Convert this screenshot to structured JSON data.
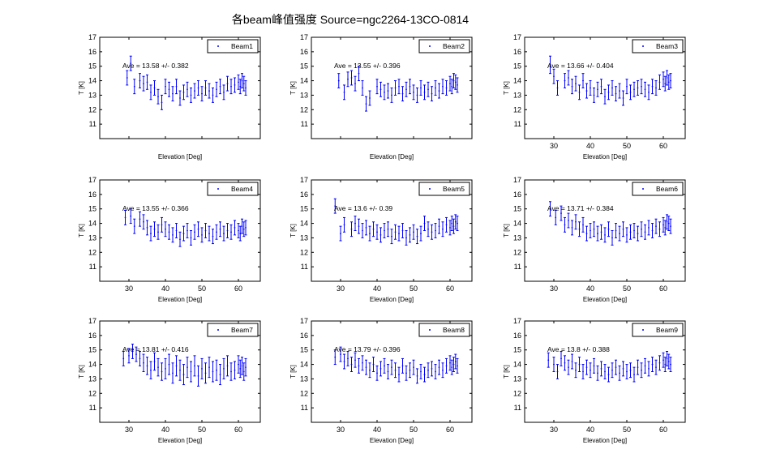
{
  "figure": {
    "title": "各beam峰值强度 Source=ngc2264-13CO-0814"
  },
  "colors": {
    "series": "#0000ff",
    "axis": "#000000",
    "background": "#ffffff"
  },
  "chart_data": [
    {
      "type": "scatter",
      "error_bars": true,
      "legend": "Beam1",
      "legend_position": "top-right",
      "annotation": "Ave = 13.58 +/- 0.382",
      "xlabel": "Elevation [Deg]",
      "ylabel": "T [K]",
      "xlim": [
        22,
        66
      ],
      "ylim": [
        10,
        17
      ],
      "xticks": [],
      "yticks": [
        11,
        12,
        13,
        14,
        15,
        16,
        17
      ],
      "grid": false,
      "x": [
        29.5,
        30.5,
        31.5,
        33,
        34,
        35,
        36,
        37,
        38,
        39,
        40,
        41,
        42,
        43,
        44,
        45,
        46,
        47,
        48,
        49,
        50,
        51,
        52,
        53,
        54,
        55,
        56,
        57,
        58,
        59,
        60,
        60.5,
        61,
        61.5,
        62
      ],
      "y": [
        14.2,
        15.2,
        13.6,
        14.0,
        13.8,
        13.9,
        13.2,
        13.5,
        12.9,
        12.5,
        13.6,
        13.4,
        13.1,
        13.6,
        12.8,
        13.2,
        13.4,
        13.0,
        13.3,
        13.5,
        13.1,
        13.5,
        13.3,
        13.0,
        13.4,
        13.6,
        13.2,
        13.8,
        13.6,
        13.7,
        13.9,
        13.6,
        14.0,
        13.8,
        13.5
      ],
      "err": [
        0.5,
        0.5,
        0.5,
        0.5,
        0.5,
        0.5,
        0.5,
        0.5,
        0.5,
        0.5,
        0.5,
        0.5,
        0.5,
        0.5,
        0.5,
        0.5,
        0.5,
        0.5,
        0.5,
        0.5,
        0.5,
        0.5,
        0.5,
        0.5,
        0.5,
        0.5,
        0.5,
        0.5,
        0.5,
        0.5,
        0.5,
        0.5,
        0.5,
        0.5,
        0.5
      ]
    },
    {
      "type": "scatter",
      "error_bars": true,
      "legend": "Beam2",
      "legend_position": "top-right",
      "annotation": "Ave = 13.55 +/- 0.396",
      "xlabel": "Elevation [Deg]",
      "ylabel": "T [K]",
      "xlim": [
        22,
        66
      ],
      "ylim": [
        10,
        17
      ],
      "xticks": [],
      "yticks": [
        11,
        12,
        13,
        14,
        15,
        16,
        17
      ],
      "grid": false,
      "x": [
        29.5,
        31,
        32,
        33,
        34,
        35,
        36,
        37,
        38,
        40,
        41,
        42,
        43,
        44,
        45,
        46,
        47,
        48,
        49,
        50,
        51,
        52,
        53,
        54,
        55,
        56,
        57,
        58,
        59,
        60,
        60.5,
        61,
        61.5,
        62
      ],
      "y": [
        14.0,
        13.2,
        14.1,
        14.2,
        13.8,
        14.5,
        13.5,
        12.4,
        12.8,
        13.6,
        13.4,
        13.2,
        13.3,
        13.0,
        13.5,
        13.6,
        13.1,
        13.4,
        13.6,
        13.2,
        13.0,
        13.5,
        13.2,
        13.4,
        13.1,
        13.5,
        13.3,
        13.6,
        13.5,
        13.8,
        13.6,
        14.0,
        13.9,
        13.7
      ],
      "err": [
        0.5,
        0.5,
        0.5,
        0.5,
        0.5,
        0.5,
        0.5,
        0.5,
        0.5,
        0.5,
        0.5,
        0.5,
        0.5,
        0.5,
        0.5,
        0.5,
        0.5,
        0.5,
        0.5,
        0.5,
        0.5,
        0.5,
        0.5,
        0.5,
        0.5,
        0.5,
        0.5,
        0.5,
        0.5,
        0.5,
        0.5,
        0.5,
        0.5,
        0.5
      ]
    },
    {
      "type": "scatter",
      "error_bars": true,
      "legend": "Beam3",
      "legend_position": "top-right",
      "annotation": "Ave = 13.66 +/- 0.404",
      "xlabel": "Elevation [Deg]",
      "ylabel": "T [K]",
      "xlim": [
        22,
        66
      ],
      "ylim": [
        10,
        17
      ],
      "xticks": [
        30,
        40,
        50,
        60
      ],
      "yticks": [
        11,
        12,
        13,
        14,
        15,
        16,
        17
      ],
      "grid": false,
      "x": [
        29,
        30,
        31,
        33,
        34,
        35,
        36,
        37,
        38,
        39,
        40,
        41,
        42,
        43,
        44,
        45,
        46,
        47,
        48,
        49,
        50,
        51,
        52,
        53,
        54,
        55,
        56,
        57,
        58,
        59,
        60,
        60.5,
        61,
        61.5,
        62
      ],
      "y": [
        15.1,
        14.3,
        13.5,
        14.0,
        14.2,
        13.6,
        13.8,
        13.2,
        14.0,
        13.3,
        13.5,
        13.0,
        13.4,
        13.6,
        12.9,
        13.2,
        13.5,
        13.1,
        13.3,
        12.8,
        13.6,
        13.2,
        13.4,
        13.5,
        13.6,
        13.4,
        13.2,
        13.6,
        13.5,
        13.9,
        14.1,
        13.8,
        14.2,
        13.9,
        14.0
      ],
      "err": [
        0.6,
        0.5,
        0.5,
        0.5,
        0.5,
        0.5,
        0.5,
        0.5,
        0.5,
        0.5,
        0.5,
        0.5,
        0.5,
        0.5,
        0.5,
        0.5,
        0.5,
        0.5,
        0.5,
        0.5,
        0.5,
        0.5,
        0.5,
        0.5,
        0.5,
        0.5,
        0.5,
        0.5,
        0.5,
        0.5,
        0.5,
        0.5,
        0.5,
        0.5,
        0.5
      ]
    },
    {
      "type": "scatter",
      "error_bars": true,
      "legend": "Beam4",
      "legend_position": "top-right",
      "annotation": "Ave = 13.55 +/- 0.366",
      "xlabel": "Elevation [Deg]",
      "ylabel": "T [K]",
      "xlim": [
        22,
        66
      ],
      "ylim": [
        10,
        17
      ],
      "xticks": [
        30,
        40,
        50,
        60
      ],
      "yticks": [
        11,
        12,
        13,
        14,
        15,
        16,
        17
      ],
      "grid": false,
      "x": [
        29,
        30.5,
        31.5,
        33,
        34,
        35,
        36,
        37,
        38,
        39,
        40,
        41,
        42,
        43,
        44,
        45,
        46,
        47,
        48,
        49,
        50,
        51,
        52,
        53,
        54,
        55,
        56,
        57,
        58,
        59,
        60,
        60.5,
        61,
        61.5,
        62
      ],
      "y": [
        14.4,
        14.5,
        13.8,
        14.3,
        14.1,
        13.7,
        13.3,
        13.6,
        13.4,
        13.9,
        13.6,
        13.4,
        13.2,
        13.5,
        12.9,
        13.3,
        13.5,
        13.0,
        13.4,
        13.6,
        13.2,
        13.5,
        13.3,
        13.1,
        13.4,
        13.6,
        13.3,
        13.5,
        13.4,
        13.7,
        13.5,
        13.3,
        13.8,
        13.6,
        13.7
      ],
      "err": [
        0.5,
        0.5,
        0.5,
        0.5,
        0.5,
        0.5,
        0.5,
        0.5,
        0.5,
        0.5,
        0.5,
        0.5,
        0.5,
        0.5,
        0.5,
        0.5,
        0.5,
        0.5,
        0.5,
        0.5,
        0.5,
        0.5,
        0.5,
        0.5,
        0.5,
        0.5,
        0.5,
        0.5,
        0.5,
        0.5,
        0.5,
        0.5,
        0.5,
        0.5,
        0.5
      ]
    },
    {
      "type": "scatter",
      "error_bars": true,
      "legend": "Beam5",
      "legend_position": "top-right",
      "annotation": "Ave = 13.6 +/- 0.39",
      "xlabel": "Elevation [Deg]",
      "ylabel": "T [K]",
      "xlim": [
        22,
        66
      ],
      "ylim": [
        10,
        17
      ],
      "xticks": [
        30,
        40,
        50,
        60
      ],
      "yticks": [
        11,
        12,
        13,
        14,
        15,
        16,
        17
      ],
      "grid": false,
      "x": [
        28.5,
        30,
        31,
        33,
        34,
        35,
        36,
        37,
        38,
        39,
        40,
        41,
        42,
        43,
        44,
        45,
        46,
        47,
        48,
        49,
        50,
        51,
        52,
        53,
        54,
        55,
        56,
        57,
        58,
        59,
        60,
        60.5,
        61,
        61.5,
        62
      ],
      "y": [
        15.2,
        13.3,
        13.9,
        13.6,
        14.0,
        13.8,
        13.5,
        13.7,
        13.3,
        13.6,
        13.4,
        13.2,
        13.5,
        13.6,
        13.1,
        13.4,
        13.3,
        13.5,
        13.0,
        13.2,
        13.4,
        13.1,
        13.3,
        14.0,
        13.6,
        13.4,
        13.5,
        13.8,
        13.6,
        13.9,
        13.7,
        14.0,
        13.8,
        14.1,
        14.0
      ],
      "err": [
        0.5,
        0.5,
        0.5,
        0.5,
        0.5,
        0.5,
        0.5,
        0.5,
        0.5,
        0.5,
        0.5,
        0.5,
        0.5,
        0.5,
        0.5,
        0.5,
        0.5,
        0.5,
        0.5,
        0.5,
        0.5,
        0.5,
        0.5,
        0.5,
        0.5,
        0.5,
        0.5,
        0.5,
        0.5,
        0.5,
        0.5,
        0.5,
        0.5,
        0.5,
        0.5
      ]
    },
    {
      "type": "scatter",
      "error_bars": true,
      "legend": "Beam6",
      "legend_position": "top-right",
      "annotation": "Ave = 13.71 +/- 0.384",
      "xlabel": "Elevation [Deg]",
      "ylabel": "T [K]",
      "xlim": [
        22,
        66
      ],
      "ylim": [
        10,
        17
      ],
      "xticks": [
        30,
        40,
        50,
        60
      ],
      "yticks": [
        11,
        12,
        13,
        14,
        15,
        16,
        17
      ],
      "grid": false,
      "x": [
        29,
        30.5,
        32,
        33,
        34,
        35,
        36,
        37,
        38,
        39,
        40,
        41,
        42,
        43,
        44,
        45,
        46,
        47,
        48,
        49,
        50,
        51,
        52,
        53,
        54,
        55,
        56,
        57,
        58,
        59,
        60,
        60.5,
        61,
        61.5,
        62
      ],
      "y": [
        15.0,
        14.4,
        14.7,
        13.9,
        14.2,
        13.7,
        14.1,
        13.6,
        13.9,
        13.3,
        13.5,
        13.6,
        13.3,
        13.4,
        13.2,
        13.6,
        13.0,
        13.5,
        13.3,
        13.6,
        13.2,
        13.4,
        13.5,
        13.3,
        13.6,
        13.4,
        13.7,
        13.5,
        13.8,
        13.6,
        13.9,
        13.7,
        14.1,
        14.0,
        13.8
      ],
      "err": [
        0.5,
        0.5,
        0.5,
        0.5,
        0.5,
        0.5,
        0.5,
        0.5,
        0.5,
        0.5,
        0.5,
        0.5,
        0.5,
        0.5,
        0.5,
        0.5,
        0.5,
        0.5,
        0.5,
        0.5,
        0.5,
        0.5,
        0.5,
        0.5,
        0.5,
        0.5,
        0.5,
        0.5,
        0.5,
        0.5,
        0.5,
        0.5,
        0.5,
        0.5,
        0.5
      ]
    },
    {
      "type": "scatter",
      "error_bars": true,
      "legend": "Beam7",
      "legend_position": "top-right",
      "annotation": "Ave = 13.81 +/- 0.416",
      "xlabel": "Elevation [Deg]",
      "ylabel": "T [K]",
      "xlim": [
        22,
        66
      ],
      "ylim": [
        10,
        17
      ],
      "xticks": [
        30,
        40,
        50,
        60
      ],
      "yticks": [
        11,
        12,
        13,
        14,
        15,
        16,
        17
      ],
      "grid": false,
      "x": [
        28.5,
        30,
        31,
        32,
        33,
        34,
        35,
        36,
        37,
        38,
        39,
        40,
        41,
        42,
        43,
        44,
        45,
        46,
        47,
        48,
        49,
        50,
        51,
        52,
        53,
        54,
        55,
        56,
        57,
        58,
        59,
        60,
        60.5,
        61,
        61.5,
        62
      ],
      "y": [
        14.4,
        14.6,
        14.9,
        14.7,
        14.4,
        14.1,
        13.9,
        13.6,
        14.2,
        13.8,
        13.5,
        13.7,
        14.0,
        13.4,
        13.9,
        13.6,
        13.3,
        13.8,
        13.5,
        13.9,
        13.2,
        13.7,
        13.4,
        13.8,
        13.5,
        13.6,
        13.3,
        13.7,
        13.9,
        13.5,
        13.6,
        14.0,
        13.7,
        13.9,
        13.5,
        13.8
      ],
      "err": [
        0.5,
        0.5,
        0.5,
        0.5,
        0.5,
        0.6,
        0.6,
        0.6,
        0.6,
        0.6,
        0.6,
        0.7,
        0.7,
        0.7,
        0.7,
        0.7,
        0.7,
        0.7,
        0.7,
        0.7,
        0.7,
        0.7,
        0.7,
        0.7,
        0.7,
        0.7,
        0.7,
        0.7,
        0.7,
        0.6,
        0.6,
        0.6,
        0.6,
        0.6,
        0.6,
        0.6
      ]
    },
    {
      "type": "scatter",
      "error_bars": true,
      "legend": "Beam8",
      "legend_position": "top-right",
      "annotation": "Ave = 13.79 +/- 0.396",
      "xlabel": "Elevation [Deg]",
      "ylabel": "T [K]",
      "xlim": [
        22,
        66
      ],
      "ylim": [
        10,
        17
      ],
      "xticks": [
        30,
        40,
        50,
        60
      ],
      "yticks": [
        11,
        12,
        13,
        14,
        15,
        16,
        17
      ],
      "grid": false,
      "x": [
        28.5,
        30,
        31,
        32,
        33,
        34,
        35,
        36,
        37,
        38,
        39,
        40,
        41,
        42,
        43,
        44,
        45,
        46,
        47,
        48,
        49,
        50,
        51,
        52,
        53,
        54,
        55,
        56,
        57,
        58,
        59,
        60,
        60.5,
        61,
        61.5,
        62
      ],
      "y": [
        14.5,
        14.7,
        14.2,
        14.4,
        14.0,
        14.3,
        13.9,
        14.1,
        13.8,
        13.6,
        14.0,
        13.4,
        13.7,
        13.9,
        13.5,
        13.8,
        13.6,
        13.3,
        13.9,
        13.4,
        13.6,
        13.8,
        13.2,
        13.5,
        13.3,
        13.6,
        13.7,
        13.5,
        13.8,
        13.6,
        13.9,
        14.1,
        13.8,
        14.0,
        14.2,
        13.9
      ],
      "err": [
        0.5,
        0.5,
        0.5,
        0.5,
        0.5,
        0.5,
        0.5,
        0.5,
        0.5,
        0.5,
        0.5,
        0.5,
        0.5,
        0.5,
        0.5,
        0.5,
        0.5,
        0.5,
        0.5,
        0.5,
        0.5,
        0.5,
        0.5,
        0.5,
        0.5,
        0.5,
        0.5,
        0.5,
        0.5,
        0.5,
        0.5,
        0.5,
        0.5,
        0.5,
        0.5,
        0.5
      ]
    },
    {
      "type": "scatter",
      "error_bars": true,
      "legend": "Beam9",
      "legend_position": "top-right",
      "annotation": "Ave = 13.8 +/- 0.388",
      "xlabel": "Elevation [Deg]",
      "ylabel": "T [K]",
      "xlim": [
        22,
        66
      ],
      "ylim": [
        10,
        17
      ],
      "xticks": [
        30,
        40,
        50,
        60
      ],
      "yticks": [
        11,
        12,
        13,
        14,
        15,
        16,
        17
      ],
      "grid": false,
      "x": [
        28.5,
        30,
        31,
        32,
        33,
        34,
        35,
        36,
        37,
        38,
        39,
        40,
        41,
        42,
        43,
        44,
        45,
        46,
        47,
        48,
        49,
        50,
        51,
        52,
        53,
        54,
        55,
        56,
        57,
        58,
        59,
        60,
        60.5,
        61,
        61.5,
        62
      ],
      "y": [
        14.3,
        14.0,
        13.5,
        14.4,
        14.1,
        13.8,
        14.2,
        13.6,
        14.0,
        13.5,
        13.8,
        13.6,
        13.9,
        13.4,
        13.7,
        13.5,
        13.3,
        13.6,
        13.8,
        13.4,
        13.7,
        13.5,
        13.6,
        13.3,
        13.8,
        13.6,
        13.9,
        13.7,
        14.0,
        13.8,
        14.1,
        14.3,
        14.0,
        14.4,
        14.2,
        14.0
      ],
      "err": [
        0.5,
        0.5,
        0.5,
        0.5,
        0.5,
        0.5,
        0.5,
        0.5,
        0.5,
        0.5,
        0.5,
        0.5,
        0.5,
        0.5,
        0.5,
        0.5,
        0.5,
        0.5,
        0.5,
        0.5,
        0.5,
        0.5,
        0.5,
        0.5,
        0.5,
        0.5,
        0.5,
        0.5,
        0.5,
        0.5,
        0.5,
        0.5,
        0.5,
        0.5,
        0.5,
        0.5
      ]
    }
  ]
}
